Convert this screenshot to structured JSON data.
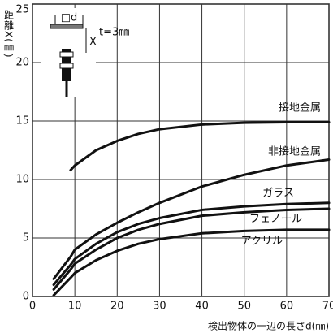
{
  "chart_data": {
    "type": "line",
    "x_label": "検出物体の一辺の長さd(㎜)",
    "y_label": "距離X(㎜)",
    "annotations": [
      "□d",
      "X",
      "t=3㎜"
    ],
    "x": [
      5,
      9,
      10,
      15,
      20,
      25,
      30,
      40,
      50,
      60,
      70
    ],
    "series": [
      {
        "name": "接地金属",
        "color": "#111111",
        "values": [
          null,
          10.8,
          11.2,
          12.5,
          13.3,
          13.9,
          14.3,
          14.7,
          14.85,
          14.9,
          14.9
        ]
      },
      {
        "name": "非接地金属",
        "color": "#111111",
        "values": [
          1.5,
          3.4,
          4.0,
          5.3,
          6.3,
          7.2,
          8.0,
          9.4,
          10.4,
          11.2,
          11.7
        ]
      },
      {
        "name": "ガラス",
        "color": "#111111",
        "values": [
          1.0,
          2.7,
          3.2,
          4.5,
          5.5,
          6.2,
          6.7,
          7.4,
          7.7,
          7.9,
          8.0
        ]
      },
      {
        "name": "フェノール",
        "color": "#111111",
        "values": [
          0.6,
          2.3,
          2.8,
          4.0,
          5.0,
          5.7,
          6.2,
          6.9,
          7.2,
          7.4,
          7.5
        ]
      },
      {
        "name": "アクリル",
        "color": "#111111",
        "values": [
          0.1,
          1.6,
          2.0,
          3.1,
          3.9,
          4.5,
          4.9,
          5.4,
          5.6,
          5.7,
          5.7
        ]
      }
    ],
    "xlim": [
      0,
      70
    ],
    "ylim": [
      0,
      25
    ],
    "xticks": [
      0,
      10,
      20,
      30,
      40,
      50,
      60,
      70
    ],
    "yticks": [
      0,
      5,
      10,
      15,
      20,
      25
    ],
    "grid": true
  }
}
